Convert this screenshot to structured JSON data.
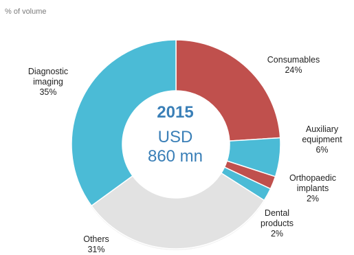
{
  "chart_data": {
    "type": "pie",
    "donut": true,
    "subtitle": "% of volume",
    "center": {
      "year": "2015",
      "currency": "USD",
      "amount": "860 mn"
    },
    "slices": [
      {
        "label": [
          "Consumables"
        ],
        "pct_text": "24%",
        "value": 24,
        "color": "#c0504d"
      },
      {
        "label": [
          "Auxiliary",
          "equipment"
        ],
        "pct_text": "6%",
        "value": 6,
        "color": "#4bbbd6"
      },
      {
        "label": [
          "Orthopaedic",
          "implants"
        ],
        "pct_text": "2%",
        "value": 2,
        "color": "#c0504d"
      },
      {
        "label": [
          "Dental",
          "products"
        ],
        "pct_text": "2%",
        "value": 2,
        "color": "#4bbbd6"
      },
      {
        "label": [
          "Others"
        ],
        "pct_text": "31%",
        "value": 31,
        "color": "#e2e2e2"
      },
      {
        "label": [
          "Diagnostic",
          "imaging"
        ],
        "pct_text": "35%",
        "value": 35,
        "color": "#4bbbd6"
      }
    ]
  }
}
